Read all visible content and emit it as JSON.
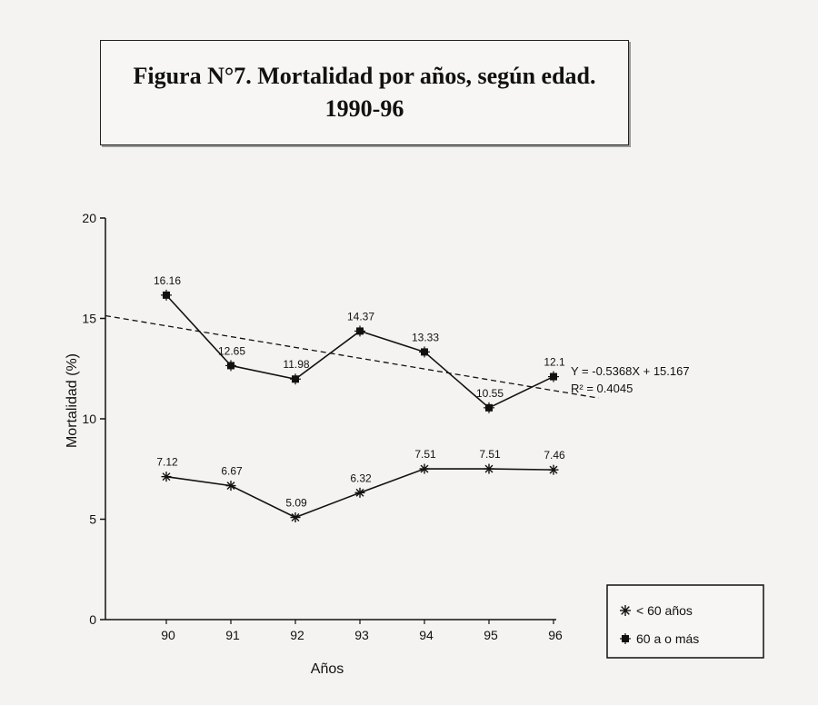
{
  "title": {
    "line1": "Figura N°7. Mortalidad por años, según edad.",
    "line2": "1990-96"
  },
  "chart_data": {
    "type": "line",
    "categories": [
      "90",
      "91",
      "92",
      "93",
      "94",
      "95",
      "96"
    ],
    "series": [
      {
        "name": "< 60 años",
        "marker": "asterisk",
        "values": [
          7.12,
          6.67,
          5.09,
          6.32,
          7.51,
          7.51,
          7.46
        ],
        "labels": [
          "7.12",
          "6.67",
          "5.09",
          "6.32",
          "7.51",
          "7.51",
          "7.46"
        ]
      },
      {
        "name": "60 a o más",
        "marker": "square",
        "values": [
          16.16,
          12.65,
          11.98,
          14.37,
          13.33,
          10.55,
          12.1
        ],
        "labels": [
          "16.16",
          "12.65",
          "11.98",
          "14.37",
          "13.33",
          "10.55",
          "12.1"
        ]
      }
    ],
    "trendline": {
      "series": "60 a o más",
      "slope": -0.5368,
      "intercept": 15.167,
      "equation": "Y = -0.5368X + 15.167",
      "r_squared": "R² = 0.4045",
      "style": "dashed"
    },
    "xlabel": "Años",
    "ylabel": "Mortalidad (%)",
    "ylim": [
      0,
      20
    ],
    "yticks": [
      "0",
      "5",
      "10",
      "15",
      "20"
    ],
    "grid": false,
    "legend": "bottom-right"
  },
  "colors": {
    "line": "#111111",
    "background": "#f4f3f1"
  }
}
